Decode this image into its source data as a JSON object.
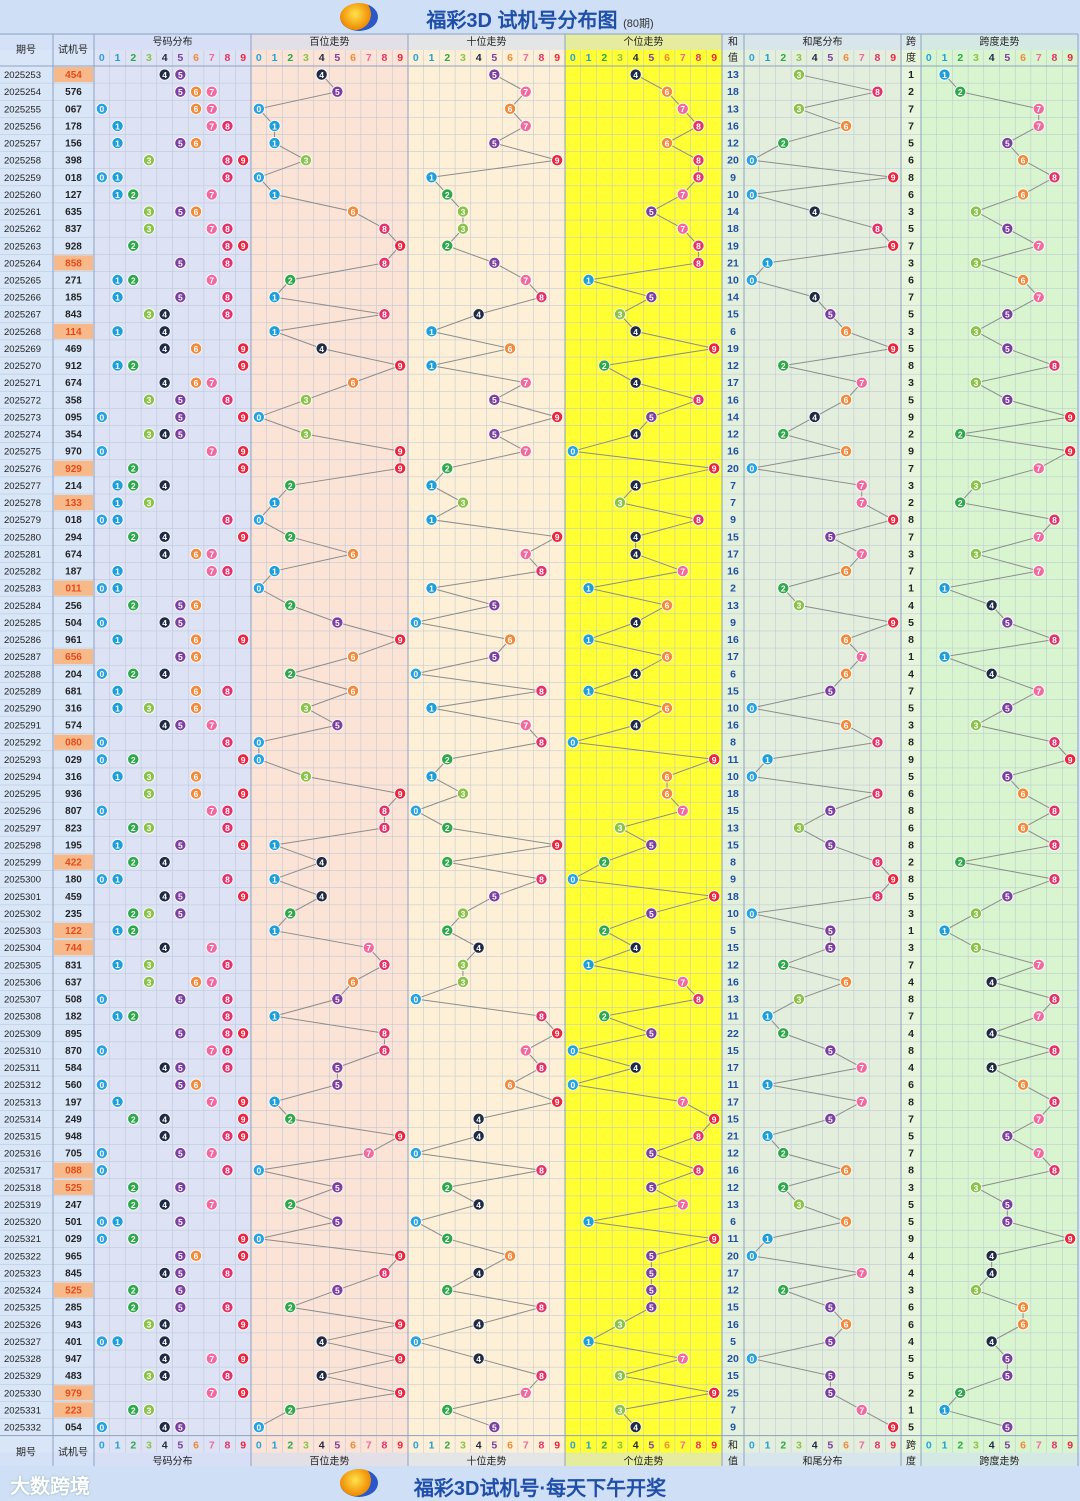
{
  "title": "福彩3D 试机号分布图",
  "title_note": "(80期)",
  "footer": "福彩3D试机号·每天下午开奖",
  "brand": "大数跨境",
  "chart_data": {
    "type": "table",
    "headers": {
      "issue": "期号",
      "number": "试机号",
      "distribution": "号码分布",
      "hundreds": "百位走势",
      "tens": "十位走势",
      "units": "个位走势",
      "sum_top": "和",
      "sum_bottom": "值",
      "sum_tail": "和尾分布",
      "span_top": "跨",
      "span_bottom": "度",
      "span_trend": "跨度走势"
    },
    "digits": [
      "0",
      "1",
      "2",
      "3",
      "4",
      "5",
      "6",
      "7",
      "8",
      "9"
    ],
    "digit_colors": [
      "#29a3e0",
      "#1e9fd8",
      "#2ea84a",
      "#8bc34a",
      "#1f2a44",
      "#7b3fa0",
      "#f08a3c",
      "#f06aa0",
      "#e0336b",
      "#e8263f"
    ],
    "rows": [
      {
        "issue": "2025253",
        "number": "454"
      },
      {
        "issue": "2025254",
        "number": "576"
      },
      {
        "issue": "2025255",
        "number": "067"
      },
      {
        "issue": "2025256",
        "number": "178"
      },
      {
        "issue": "2025257",
        "number": "156"
      },
      {
        "issue": "2025258",
        "number": "398"
      },
      {
        "issue": "2025259",
        "number": "018"
      },
      {
        "issue": "2025260",
        "number": "127"
      },
      {
        "issue": "2025261",
        "number": "635"
      },
      {
        "issue": "2025262",
        "number": "837"
      },
      {
        "issue": "2025263",
        "number": "928"
      },
      {
        "issue": "2025264",
        "number": "858"
      },
      {
        "issue": "2025265",
        "number": "271"
      },
      {
        "issue": "2025266",
        "number": "185"
      },
      {
        "issue": "2025267",
        "number": "843"
      },
      {
        "issue": "2025268",
        "number": "114"
      },
      {
        "issue": "2025269",
        "number": "469"
      },
      {
        "issue": "2025270",
        "number": "912"
      },
      {
        "issue": "2025271",
        "number": "674"
      },
      {
        "issue": "2025272",
        "number": "358"
      },
      {
        "issue": "2025273",
        "number": "095"
      },
      {
        "issue": "2025274",
        "number": "354"
      },
      {
        "issue": "2025275",
        "number": "970"
      },
      {
        "issue": "2025276",
        "number": "929"
      },
      {
        "issue": "2025277",
        "number": "214"
      },
      {
        "issue": "2025278",
        "number": "133"
      },
      {
        "issue": "2025279",
        "number": "018"
      },
      {
        "issue": "2025280",
        "number": "294"
      },
      {
        "issue": "2025281",
        "number": "674"
      },
      {
        "issue": "2025282",
        "number": "187"
      },
      {
        "issue": "2025283",
        "number": "011"
      },
      {
        "issue": "2025284",
        "number": "256"
      },
      {
        "issue": "2025285",
        "number": "504"
      },
      {
        "issue": "2025286",
        "number": "961"
      },
      {
        "issue": "2025287",
        "number": "656"
      },
      {
        "issue": "2025288",
        "number": "204"
      },
      {
        "issue": "2025289",
        "number": "681"
      },
      {
        "issue": "2025290",
        "number": "316"
      },
      {
        "issue": "2025291",
        "number": "574"
      },
      {
        "issue": "2025292",
        "number": "080"
      },
      {
        "issue": "2025293",
        "number": "029"
      },
      {
        "issue": "2025294",
        "number": "316"
      },
      {
        "issue": "2025295",
        "number": "936"
      },
      {
        "issue": "2025296",
        "number": "807"
      },
      {
        "issue": "2025297",
        "number": "823"
      },
      {
        "issue": "2025298",
        "number": "195"
      },
      {
        "issue": "2025299",
        "number": "422"
      },
      {
        "issue": "2025300",
        "number": "180"
      },
      {
        "issue": "2025301",
        "number": "459"
      },
      {
        "issue": "2025302",
        "number": "235"
      },
      {
        "issue": "2025303",
        "number": "122"
      },
      {
        "issue": "2025304",
        "number": "744"
      },
      {
        "issue": "2025305",
        "number": "831"
      },
      {
        "issue": "2025306",
        "number": "637"
      },
      {
        "issue": "2025307",
        "number": "508"
      },
      {
        "issue": "2025308",
        "number": "182"
      },
      {
        "issue": "2025309",
        "number": "895"
      },
      {
        "issue": "2025310",
        "number": "870"
      },
      {
        "issue": "2025311",
        "number": "584"
      },
      {
        "issue": "2025312",
        "number": "560"
      },
      {
        "issue": "2025313",
        "number": "197"
      },
      {
        "issue": "2025314",
        "number": "249"
      },
      {
        "issue": "2025315",
        "number": "948"
      },
      {
        "issue": "2025316",
        "number": "705"
      },
      {
        "issue": "2025317",
        "number": "088"
      },
      {
        "issue": "2025318",
        "number": "525"
      },
      {
        "issue": "2025319",
        "number": "247"
      },
      {
        "issue": "2025320",
        "number": "501"
      },
      {
        "issue": "2025321",
        "number": "029"
      },
      {
        "issue": "2025322",
        "number": "965"
      },
      {
        "issue": "2025323",
        "number": "845"
      },
      {
        "issue": "2025324",
        "number": "525"
      },
      {
        "issue": "2025325",
        "number": "285"
      },
      {
        "issue": "2025326",
        "number": "943"
      },
      {
        "issue": "2025327",
        "number": "401"
      },
      {
        "issue": "2025328",
        "number": "947"
      },
      {
        "issue": "2025329",
        "number": "483"
      },
      {
        "issue": "2025330",
        "number": "979"
      },
      {
        "issue": "2025331",
        "number": "223"
      },
      {
        "issue": "2025332",
        "number": "054"
      }
    ]
  }
}
